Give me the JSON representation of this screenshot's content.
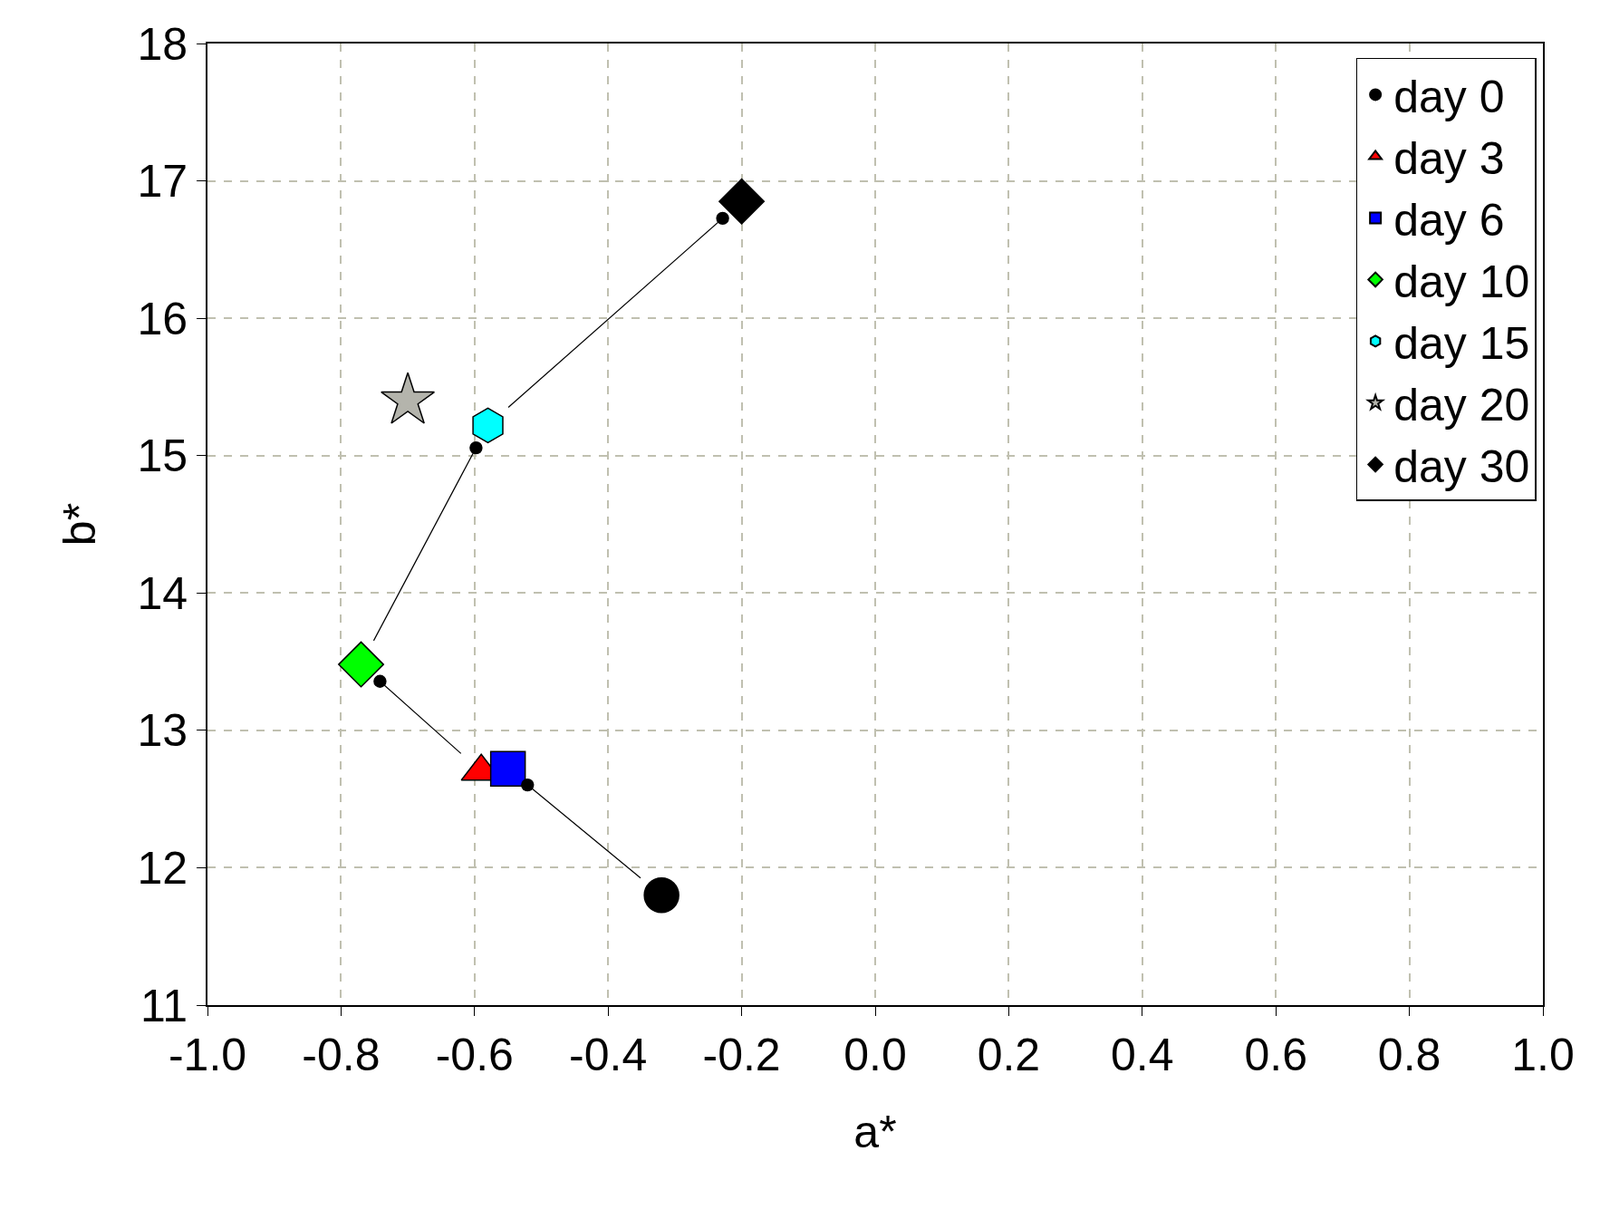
{
  "chart_data": {
    "type": "scatter",
    "x_label": "a*",
    "y_label": "b*",
    "xlim": [
      -1.0,
      1.0
    ],
    "ylim": [
      11,
      18
    ],
    "xticks": [
      {
        "value": -1.0,
        "label": "-1.0"
      },
      -0.8,
      -0.6,
      -0.4,
      -0.2,
      {
        "value": 0.0,
        "label": "0.0"
      },
      0.2,
      0.4,
      0.6,
      0.8,
      {
        "value": 1.0,
        "label": "1.0"
      }
    ],
    "yticks": [
      11,
      12,
      13,
      14,
      15,
      16,
      17,
      18
    ],
    "grid": true,
    "legend": "upper right",
    "series": [
      {
        "name": "day 0",
        "color": "#000000",
        "marker": "circle",
        "x": [
          -0.32
        ],
        "values": [
          11.8
        ]
      },
      {
        "name": "day 3",
        "color": "#ff0000",
        "marker": "triangle-up",
        "x": [
          -0.59
        ],
        "values": [
          12.7
        ]
      },
      {
        "name": "day 6",
        "color": "#0000ff",
        "marker": "square",
        "x": [
          -0.55
        ],
        "values": [
          12.72
        ]
      },
      {
        "name": "day 10",
        "color": "#00ff00",
        "marker": "diamond",
        "x": [
          -0.77
        ],
        "values": [
          13.48
        ]
      },
      {
        "name": "day 15",
        "color": "#00ffff",
        "marker": "hexagon",
        "x": [
          -0.58
        ],
        "values": [
          15.22
        ]
      },
      {
        "name": "day 20",
        "color": "#b4b4ac",
        "marker": "star",
        "x": [
          -0.7
        ],
        "values": [
          15.4
        ]
      },
      {
        "name": "day 30",
        "color": "#000000",
        "marker": "diamond",
        "x": [
          -0.2
        ],
        "values": [
          16.85
        ]
      }
    ]
  }
}
